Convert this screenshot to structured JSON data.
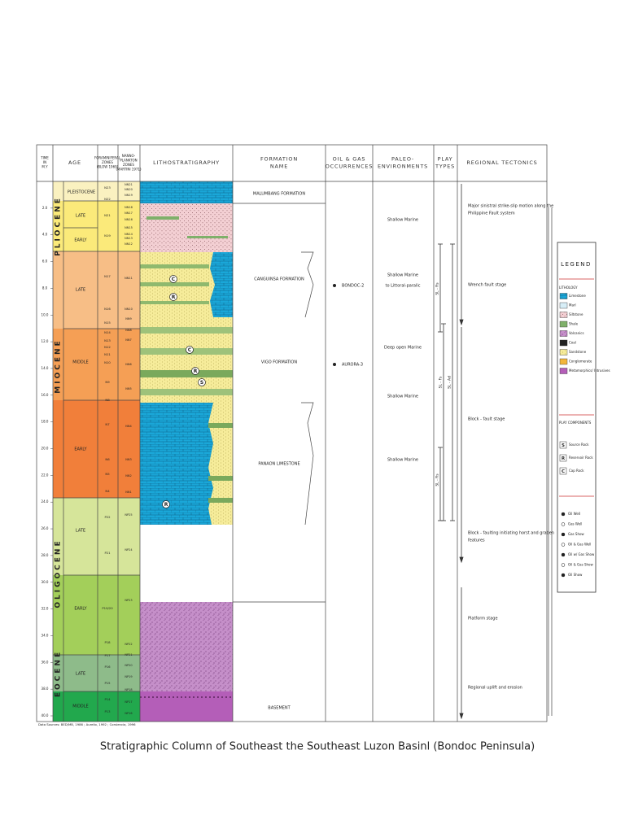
{
  "columns": [
    [
      "TIME",
      "IN",
      "M.Y"
    ],
    [
      "AGE"
    ],
    [
      "FORAMINIFERAL",
      "ZONES",
      "(BLOW 1969)"
    ],
    [
      "NANNO-",
      "PLANKTON",
      "ZONES",
      "(MARTINI 1971)"
    ],
    [
      "LITHOSTRATIGRAPHY"
    ],
    [
      "FORMATION",
      "NAME"
    ],
    [
      "OIL & GAS",
      "OCCURRENCES"
    ],
    [
      "PALEO-",
      "ENVIRONMENTS"
    ],
    [
      "PLAY",
      "TYPES"
    ],
    [
      "REGIONAL TECTONICS"
    ]
  ],
  "time_ticks": [
    "2.0",
    "4.0",
    "6.0",
    "8.0",
    "10.0",
    "12.0",
    "14.0",
    "16.0",
    "18.0",
    "20.0",
    "22.0",
    "24.0",
    "26.0",
    "28.0",
    "30.0",
    "32.0",
    "34.0",
    "36.0",
    "38.0",
    "40.0"
  ],
  "epochs": [
    "PLIOCENE",
    "MIOCENE",
    "OLIGOCENE",
    "EOCENE"
  ],
  "ages": [
    "PLEISTOCENE",
    "LATE",
    "EARLY",
    "LATE",
    "MIDDLE",
    "EARLY",
    "LATE",
    "EARLY",
    "LATE",
    "MIDDLE"
  ],
  "foram_zones": [
    "N23",
    "N22",
    "N21",
    "N19",
    "N17",
    "N16",
    "N15",
    "N14",
    "N13",
    "N12",
    "N11",
    "N10",
    "N9",
    "N8",
    "N7",
    "N6",
    "N5",
    "N4",
    "P22",
    "P21",
    "P19/20",
    "P18",
    "P17",
    "P16",
    "P15",
    "P14",
    "P13"
  ],
  "nanno_zones": [
    "NN21",
    "NN20",
    "NN19",
    "NN18",
    "NN17",
    "NN16",
    "NN15",
    "NN14",
    "NN13",
    "NN12",
    "NN11",
    "NN10",
    "NN9",
    "NN8",
    "NN7",
    "NN6",
    "NN5",
    "NN4",
    "NN3",
    "NN2",
    "NN1",
    "NP25",
    "NP24",
    "NP23",
    "NP22",
    "NP21",
    "NP20",
    "NP19",
    "NP18",
    "NP17",
    "NP16"
  ],
  "litho_markers": [
    "C",
    "R",
    "C",
    "R",
    "S",
    "R"
  ],
  "formations": [
    "MALUMBANG FORMATION",
    "CANGUINSA FORMATION",
    "VIGO FORMATION",
    "PANAON LIMESTONE",
    "BASEMENT"
  ],
  "occurrences": [
    "BONDOC-2",
    "AURORA-3"
  ],
  "paleo_environments": [
    [
      "Shallow Marine"
    ],
    [
      "Shallow Marine",
      "to Littoral-paralic"
    ],
    [
      "Deep open Marine"
    ],
    [
      "Shallow Marine"
    ],
    [
      "Shallow Marine"
    ]
  ],
  "play_types": [
    "SL - Rs",
    "SL - Fs",
    "SL - Ad",
    "SL - Rs"
  ],
  "tectonics": [
    [
      "Major sinistral strike-slip motion along the",
      "Philippine Fault system"
    ],
    [
      "Wrench fault stage"
    ],
    [
      "Block - fault stage"
    ],
    [
      "Block - faulting initiating horst and graben",
      "features"
    ],
    [
      "Platform stage"
    ],
    [
      "Regional uplift and erosion"
    ]
  ],
  "source_note": "Data Sources: BED/MB, 1986 ; Aurelio, 1992 ; Corsiencia, 1996",
  "title": "Stratigraphic Column of Southeast the Southeast Luzon Basinl (Bondoc Peninsula)",
  "legend": {
    "title": "LEGEND",
    "lithology_title": "LITHOLOGY",
    "lithology": [
      "Limestone",
      "Marl",
      "Siltstone",
      "Shale",
      "Volcanics",
      "Coal",
      "Sandstone",
      "Conglomerate",
      "Metamorphics/ Intrusives"
    ],
    "play_title": "PLAY COMPONENTS",
    "play": [
      [
        "S",
        "Source Rock"
      ],
      [
        "R",
        "Reservoir Rock"
      ],
      [
        "C",
        "Cap Rock"
      ]
    ],
    "wells": [
      "Oil Well",
      "Gas Well",
      "Gas Show",
      "Oil & Gas Well",
      "Oil w/ Gas Show",
      "Oil & Gas Show",
      "Oil Show"
    ]
  }
}
